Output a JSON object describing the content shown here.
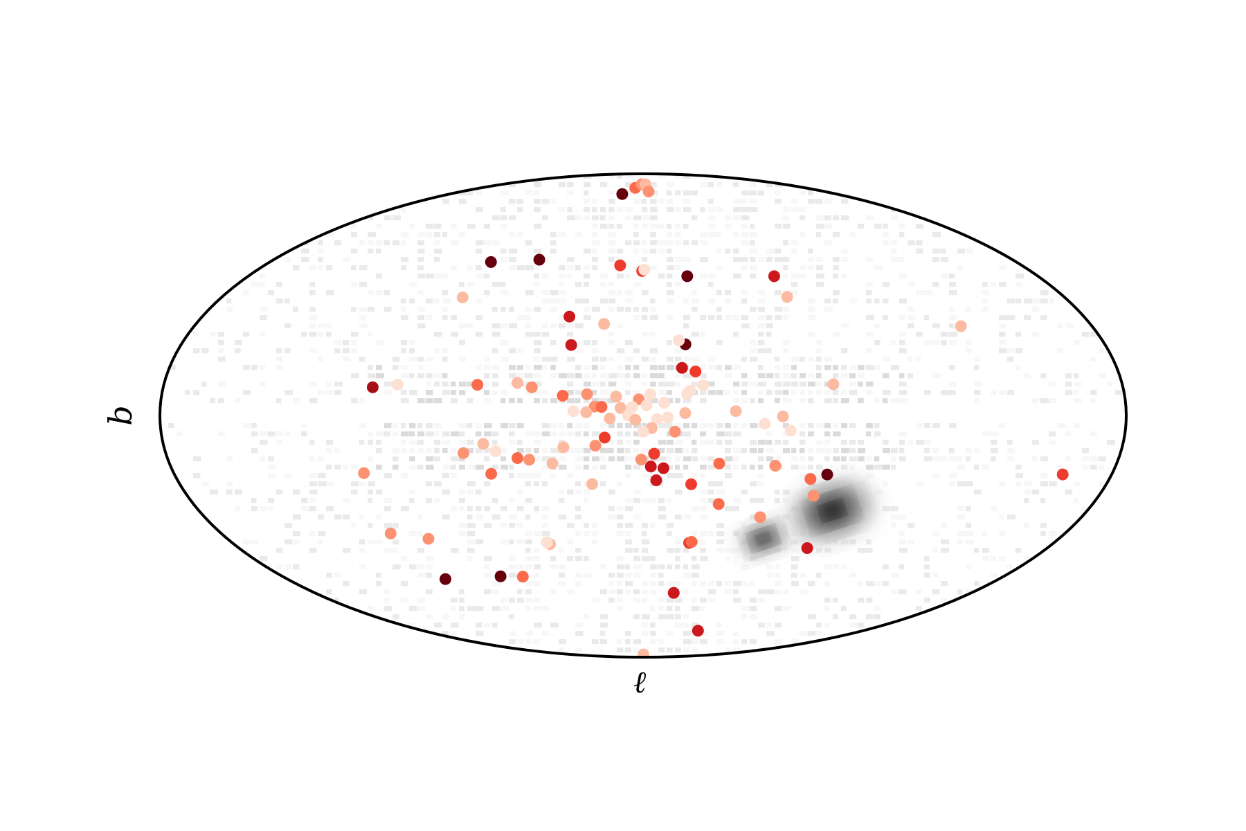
{
  "chart_data": {
    "type": "scatter",
    "projection": "aitoff",
    "title": "",
    "xlabel": "ℓ",
    "ylabel": "b",
    "xlim": [
      -180,
      180
    ],
    "ylim": [
      -90,
      90
    ],
    "grid": false,
    "legend": "none",
    "colormap": [
      "#fee0d2",
      "#fcbba1",
      "#fc9272",
      "#fb6a4a",
      "#ef3b2c",
      "#cb181d",
      "#a50f15",
      "#67000d"
    ],
    "background_density": {
      "colormap": [
        "#ffffff",
        "#f0f0f0",
        "#d9d9d9",
        "#bdbdbd",
        "#969696",
        "#525252",
        "#000000"
      ],
      "description": "",
      "blobs": [
        {
          "l": -80.0,
          "b": -32.9,
          "peak": 1.0
        },
        {
          "l": -57.0,
          "b": -44.3,
          "peak": 0.85
        }
      ],
      "disk_band_b": [
        -10,
        10
      ],
      "gap_band_b": [
        -2.5,
        2.5
      ]
    },
    "series": [
      {
        "name": "",
        "points": [
          {
            "l": 39.6,
            "b": 82.1,
            "c": 7
          },
          {
            "l": 21.3,
            "b": 84.7,
            "c": 3
          },
          {
            "l": 5.4,
            "b": 86.1,
            "c": 2
          },
          {
            "l": -8.4,
            "b": 86.1,
            "c": 1
          },
          {
            "l": -12.3,
            "b": 83.4,
            "c": 2
          },
          {
            "l": 84.1,
            "b": 53.5,
            "c": 7
          },
          {
            "l": 59.7,
            "b": 56.2,
            "c": 7
          },
          {
            "l": 12.9,
            "b": 55.8,
            "c": 4
          },
          {
            "l": 0.5,
            "b": 53.8,
            "c": 4
          },
          {
            "l": -0.7,
            "b": 54.3,
            "c": 0
          },
          {
            "l": -23.1,
            "b": 51.6,
            "c": 7
          },
          {
            "l": -67.2,
            "b": 49.6,
            "c": 5
          },
          {
            "l": -66.6,
            "b": 42.1,
            "c": 1
          },
          {
            "l": -130.1,
            "b": 27.0,
            "c": 1
          },
          {
            "l": 82.6,
            "b": 40.8,
            "c": 1
          },
          {
            "l": 31.9,
            "b": 36.4,
            "c": 5
          },
          {
            "l": 28.8,
            "b": 26.0,
            "c": 5
          },
          {
            "l": 16.5,
            "b": 34.0,
            "c": 1
          },
          {
            "l": -17.0,
            "b": 26.4,
            "c": 7
          },
          {
            "l": -14.5,
            "b": 27.9,
            "c": 0
          },
          {
            "l": -15.0,
            "b": 17.7,
            "c": 5
          },
          {
            "l": -20.1,
            "b": 16.3,
            "c": 4
          },
          {
            "l": -16.5,
            "b": 8.0,
            "c": 0
          },
          {
            "l": -17.7,
            "b": 9.2,
            "c": 0
          },
          {
            "l": -22.7,
            "b": 11.2,
            "c": 0
          },
          {
            "l": -71.8,
            "b": 10.9,
            "c": 1
          },
          {
            "l": 101.7,
            "b": 9.2,
            "c": 6
          },
          {
            "l": 92.6,
            "b": 10.3,
            "c": 0
          },
          {
            "l": 62.5,
            "b": 10.9,
            "c": 3
          },
          {
            "l": 47.5,
            "b": 11.8,
            "c": 1
          },
          {
            "l": 41.9,
            "b": 10.3,
            "c": 2
          },
          {
            "l": 30.1,
            "b": 7.3,
            "c": 3
          },
          {
            "l": 21.0,
            "b": 7.9,
            "c": 2
          },
          {
            "l": 10.1,
            "b": 7.0,
            "c": 1
          },
          {
            "l": 1.6,
            "b": 6.0,
            "c": 2
          },
          {
            "l": -2.7,
            "b": 7.9,
            "c": 0
          },
          {
            "l": -1.3,
            "b": 3.8,
            "c": 0
          },
          {
            "l": 4.0,
            "b": 3.2,
            "c": 0
          },
          {
            "l": 8.4,
            "b": 2.8,
            "c": 1
          },
          {
            "l": -7.9,
            "b": 4.7,
            "c": 0
          },
          {
            "l": 18.1,
            "b": 3.3,
            "c": 2
          },
          {
            "l": 15.5,
            "b": 3.2,
            "c": 3
          },
          {
            "l": 21.2,
            "b": 1.2,
            "c": 1
          },
          {
            "l": 26.0,
            "b": 1.6,
            "c": 0
          },
          {
            "l": 12.4,
            "b": -1.1,
            "c": 1
          },
          {
            "l": 5.6,
            "b": 0.0,
            "c": 0
          },
          {
            "l": 2.9,
            "b": -1.6,
            "c": 1
          },
          {
            "l": -5.2,
            "b": -1.4,
            "c": 0
          },
          {
            "l": -9.2,
            "b": -0.7,
            "c": 0
          },
          {
            "l": -15.7,
            "b": 0.9,
            "c": 1
          },
          {
            "l": -34.6,
            "b": 1.6,
            "c": 1
          },
          {
            "l": -52.1,
            "b": -0.3,
            "c": 1
          },
          {
            "l": -45.4,
            "b": -3.0,
            "c": 0
          },
          {
            "l": -55.2,
            "b": -5.4,
            "c": 0
          },
          {
            "l": -11.9,
            "b": -6.0,
            "c": 2
          },
          {
            "l": -3.2,
            "b": -4.7,
            "c": 1
          },
          {
            "l": 0.0,
            "b": -6.0,
            "c": 0
          },
          {
            "l": 14.4,
            "b": -8.2,
            "c": 4
          },
          {
            "l": 30.1,
            "b": -11.7,
            "c": 1
          },
          {
            "l": 18.0,
            "b": -11.2,
            "c": 2
          },
          {
            "l": 60.2,
            "b": -10.1,
            "c": 1
          },
          {
            "l": 55.9,
            "b": -12.8,
            "c": 0
          },
          {
            "l": 68.2,
            "b": -13.2,
            "c": 2
          },
          {
            "l": 48.0,
            "b": -15.4,
            "c": 3
          },
          {
            "l": 43.6,
            "b": -16.1,
            "c": 2
          },
          {
            "l": 34.9,
            "b": -17.6,
            "c": 1
          },
          {
            "l": 0.7,
            "b": -16.4,
            "c": 2
          },
          {
            "l": -4.2,
            "b": -14.2,
            "c": 4
          },
          {
            "l": -3.0,
            "b": -19.0,
            "c": 5
          },
          {
            "l": -7.9,
            "b": -19.6,
            "c": 5
          },
          {
            "l": -29.3,
            "b": -17.7,
            "c": 3
          },
          {
            "l": -51.0,
            "b": -18.1,
            "c": 2
          },
          {
            "l": -5.2,
            "b": -24.1,
            "c": 5
          },
          {
            "l": 20.3,
            "b": -25.4,
            "c": 1
          },
          {
            "l": 59.3,
            "b": -20.8,
            "c": 3
          },
          {
            "l": -19.2,
            "b": -25.5,
            "c": 4
          },
          {
            "l": -31.7,
            "b": -32.6,
            "c": 3
          },
          {
            "l": -65.9,
            "b": -22.4,
            "c": 3
          },
          {
            "l": -69.5,
            "b": -28.2,
            "c": 2
          },
          {
            "l": -71.9,
            "b": -20.6,
            "c": 7
          },
          {
            "l": -51.0,
            "b": -36.8,
            "c": 2
          },
          {
            "l": 108.3,
            "b": -18.5,
            "c": 2
          },
          {
            "l": 113.4,
            "b": -38.0,
            "c": 2
          },
          {
            "l": 99.4,
            "b": -41.2,
            "c": 2
          },
          {
            "l": 45.5,
            "b": -46.9,
            "c": 1
          },
          {
            "l": 46.6,
            "b": -46.2,
            "c": 0
          },
          {
            "l": -22.5,
            "b": -47.2,
            "c": 4
          },
          {
            "l": -23.6,
            "b": -46.8,
            "c": 3
          },
          {
            "l": -80.4,
            "b": -46.2,
            "c": 5
          },
          {
            "l": 113.2,
            "b": -54.1,
            "c": 7
          },
          {
            "l": 83.3,
            "b": -56.3,
            "c": 7
          },
          {
            "l": 71.4,
            "b": -57.4,
            "c": 3
          },
          {
            "l": -22.2,
            "b": -65.8,
            "c": 5
          },
          {
            "l": -76.0,
            "b": -78.3,
            "c": 5
          },
          {
            "l": -3.5,
            "b": -89.0,
            "c": 1
          },
          {
            "l": -161.7,
            "b": -15.5,
            "c": 4
          }
        ]
      }
    ]
  }
}
